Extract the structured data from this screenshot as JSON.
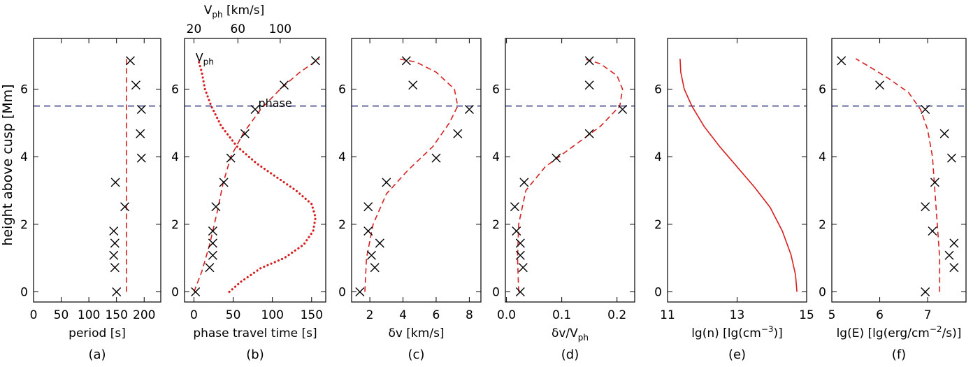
{
  "figure": {
    "shared_ylabel": "height above cusp [Mm]",
    "cusp_line_height": 5.5
  },
  "chart_data": [
    {
      "type": "scatter",
      "panel_label": "(a)",
      "xlabel": "period [s]",
      "xlim": [
        0,
        230
      ],
      "ylim": [
        -0.3,
        7.5
      ],
      "xticks": [
        0,
        50,
        100,
        150,
        200
      ],
      "xtick_labels": [
        "0",
        "50",
        "100",
        "150",
        "200"
      ],
      "yticks": [
        0,
        2,
        4,
        6
      ],
      "ytick_labels": [
        "0",
        "2",
        "4",
        "6"
      ],
      "points": {
        "x": [
          150,
          147,
          145,
          147,
          145,
          165,
          148,
          195,
          193,
          195,
          185,
          175
        ],
        "y": [
          0,
          0.72,
          1.08,
          1.44,
          1.8,
          2.52,
          3.24,
          3.96,
          4.68,
          5.4,
          6.12,
          6.84
        ]
      },
      "curves": [
        {
          "style": "dashed",
          "color": "#d62020",
          "x": [
            168,
            168,
            168,
            168,
            168,
            168,
            168,
            168
          ],
          "y": [
            0,
            1,
            2,
            3,
            4,
            5,
            6,
            6.9
          ]
        }
      ]
    },
    {
      "type": "scatter",
      "panel_label": "(b)",
      "xlabel": "phase travel time [s]",
      "top_axis_label": "V_ph [km/s]",
      "top_ticks": [
        {
          "label": "20",
          "at": 0
        },
        {
          "label": "60",
          "at": 56
        },
        {
          "label": "100",
          "at": 110
        }
      ],
      "annotations": [
        {
          "text": "V_ph",
          "x": 2,
          "y": 6.95
        },
        {
          "text": "phase",
          "x": 82,
          "y": 5.6
        }
      ],
      "xlim": [
        -12,
        168
      ],
      "ylim": [
        -0.3,
        7.5
      ],
      "xticks": [
        0,
        50,
        100,
        150
      ],
      "xtick_labels": [
        "0",
        "50",
        "100",
        "150"
      ],
      "yticks": [
        0,
        2,
        4,
        6
      ],
      "ytick_labels": [
        "0",
        "2",
        "4",
        "6"
      ],
      "points": {
        "x": [
          2,
          20,
          24,
          24,
          24,
          28,
          38,
          47,
          65,
          78,
          115,
          155
        ],
        "y": [
          0,
          0.72,
          1.08,
          1.44,
          1.8,
          2.52,
          3.24,
          3.96,
          4.68,
          5.4,
          6.12,
          6.84
        ]
      },
      "curves": [
        {
          "style": "dashed",
          "color": "#d62020",
          "x": [
            0,
            10,
            20,
            30,
            37,
            47,
            63,
            85,
            110,
            135,
            160
          ],
          "y": [
            0,
            0.6,
            1.4,
            2.4,
            3.2,
            4.0,
            4.7,
            5.4,
            6.0,
            6.5,
            6.9
          ]
        },
        {
          "style": "dotted",
          "color": "#d62020",
          "x": [
            45,
            60,
            85,
            115,
            140,
            152,
            155,
            150,
            130,
            105,
            80,
            55,
            35,
            22,
            14,
            10,
            5
          ],
          "y": [
            0,
            0.3,
            0.7,
            1.0,
            1.4,
            1.8,
            2.2,
            2.6,
            3.0,
            3.4,
            3.8,
            4.3,
            4.9,
            5.5,
            6.0,
            6.5,
            6.9
          ]
        }
      ]
    },
    {
      "type": "scatter",
      "panel_label": "(c)",
      "xlabel": "δv [km/s]",
      "xlim": [
        0.9,
        8.7
      ],
      "ylim": [
        -0.3,
        7.5
      ],
      "xticks": [
        2,
        4,
        6,
        8
      ],
      "xtick_labels": [
        "2",
        "4",
        "6",
        "8"
      ],
      "yticks": [
        0,
        2,
        4,
        6
      ],
      "ytick_labels": [
        "0",
        "2",
        "4",
        "6"
      ],
      "points": {
        "x": [
          1.4,
          2.3,
          2.1,
          2.6,
          1.9,
          1.9,
          3.0,
          6.0,
          7.3,
          8.0,
          4.6,
          4.2
        ],
        "y": [
          0,
          0.72,
          1.08,
          1.44,
          1.8,
          2.52,
          3.24,
          3.96,
          4.68,
          5.4,
          6.12,
          6.84
        ]
      },
      "curves": [
        {
          "style": "dashed",
          "color": "#d62020",
          "x": [
            1.7,
            1.8,
            2.2,
            3.0,
            4.3,
            5.8,
            6.8,
            7.3,
            7.1,
            6.0,
            4.8,
            3.7
          ],
          "y": [
            0,
            1.0,
            2.0,
            2.9,
            3.6,
            4.3,
            5.0,
            5.5,
            6.0,
            6.5,
            6.8,
            6.9
          ]
        }
      ]
    },
    {
      "type": "scatter",
      "panel_label": "(d)",
      "xlabel": "δv/V_ph",
      "xlim": [
        -0.002,
        0.232
      ],
      "ylim": [
        -0.3,
        7.5
      ],
      "xticks": [
        0,
        0.1,
        0.2
      ],
      "xtick_labels": [
        "0.0",
        "0.1",
        "0.2"
      ],
      "yticks": [
        0,
        2,
        4,
        6
      ],
      "ytick_labels": [
        "0",
        "2",
        "4",
        "6"
      ],
      "points": {
        "x": [
          0.025,
          0.03,
          0.025,
          0.025,
          0.018,
          0.015,
          0.032,
          0.09,
          0.15,
          0.21,
          0.15,
          0.15
        ],
        "y": [
          0,
          0.72,
          1.08,
          1.44,
          1.8,
          2.52,
          3.24,
          3.96,
          4.68,
          5.4,
          6.12,
          6.84
        ]
      },
      "curves": [
        {
          "style": "dashed",
          "color": "#d62020",
          "x": [
            0.022,
            0.02,
            0.022,
            0.035,
            0.07,
            0.12,
            0.17,
            0.205,
            0.21,
            0.2,
            0.17,
            0.14
          ],
          "y": [
            0,
            1.0,
            2.0,
            3.0,
            3.7,
            4.3,
            4.9,
            5.5,
            6.0,
            6.4,
            6.75,
            6.9
          ]
        }
      ]
    },
    {
      "type": "line",
      "panel_label": "(e)",
      "xlabel": "lg(n) [lg(cm^-3)]",
      "xlim": [
        11,
        15
      ],
      "ylim": [
        -0.3,
        7.5
      ],
      "xticks": [
        11,
        13,
        15
      ],
      "xtick_labels": [
        "11",
        "13",
        "15"
      ],
      "yticks": [
        0,
        2,
        4,
        6
      ],
      "ytick_labels": [
        "0",
        "2",
        "4",
        "6"
      ],
      "points": {
        "x": [],
        "y": []
      },
      "curves": [
        {
          "style": "solid",
          "color": "#d62020",
          "x": [
            14.72,
            14.68,
            14.55,
            14.3,
            13.95,
            13.5,
            13.0,
            12.5,
            12.05,
            11.7,
            11.48,
            11.38,
            11.36
          ],
          "y": [
            0,
            0.5,
            1.1,
            1.8,
            2.5,
            3.1,
            3.7,
            4.3,
            4.9,
            5.5,
            6.0,
            6.5,
            6.9
          ]
        }
      ]
    },
    {
      "type": "scatter",
      "panel_label": "(f)",
      "xlabel": "lg(E) [lg(erg/cm^-2/s)]",
      "xlim": [
        5,
        7.8
      ],
      "ylim": [
        -0.3,
        7.5
      ],
      "xticks": [
        5,
        6,
        7
      ],
      "xtick_labels": [
        "5",
        "6",
        "7"
      ],
      "yticks": [
        0,
        2,
        4,
        6
      ],
      "ytick_labels": [
        "0",
        "2",
        "4",
        "6"
      ],
      "points": {
        "x": [
          6.95,
          7.55,
          7.45,
          7.55,
          7.1,
          6.95,
          7.15,
          7.5,
          7.35,
          6.95,
          6.0,
          5.2
        ],
        "y": [
          0,
          0.72,
          1.08,
          1.44,
          1.8,
          2.52,
          3.24,
          3.96,
          4.68,
          5.4,
          6.12,
          6.84
        ]
      },
      "curves": [
        {
          "style": "dashed",
          "color": "#d62020",
          "x": [
            7.25,
            7.25,
            7.2,
            7.15,
            7.1,
            7.0,
            6.85,
            6.6,
            6.2,
            5.8,
            5.5
          ],
          "y": [
            0,
            1.0,
            2.0,
            3.0,
            4.0,
            4.8,
            5.4,
            5.9,
            6.3,
            6.65,
            6.9
          ]
        }
      ]
    }
  ]
}
